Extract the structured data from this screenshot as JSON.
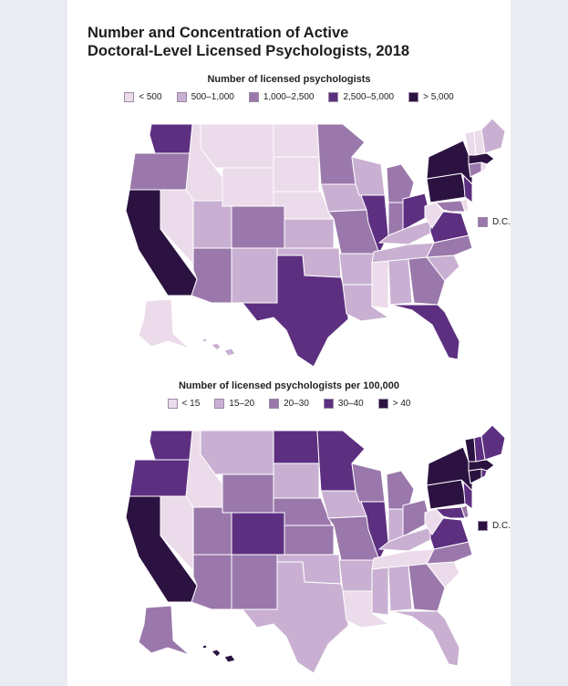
{
  "title_line1": "Number and Concentration of Active",
  "title_line2": "Doctoral-Level Licensed Psychologists, 2018",
  "colors": [
    "#ecdbea",
    "#c9b0d2",
    "#9a78ab",
    "#5d2f80",
    "#2c1241"
  ],
  "map1": {
    "subtitle": "Number of licensed psychologists",
    "legend": [
      "< 500",
      "500–1,000",
      "1,000–2,500",
      "2,500–5,000",
      "> 5,000"
    ],
    "dc_label": "D.C.",
    "dc_class": 2,
    "states": {
      "WA": 3,
      "OR": 2,
      "CA": 4,
      "NV": 0,
      "ID": 0,
      "MT": 0,
      "WY": 0,
      "UT": 1,
      "AZ": 2,
      "CO": 2,
      "NM": 1,
      "ND": 0,
      "SD": 0,
      "NE": 0,
      "KS": 1,
      "OK": 1,
      "TX": 3,
      "MN": 2,
      "IA": 1,
      "MO": 2,
      "AR": 1,
      "LA": 1,
      "WI": 1,
      "IL": 3,
      "MI": 2,
      "IN": 2,
      "OH": 3,
      "KY": 1,
      "TN": 1,
      "MS": 0,
      "AL": 1,
      "GA": 2,
      "FL": 3,
      "SC": 1,
      "NC": 2,
      "VA": 3,
      "WV": 0,
      "PA": 4,
      "NY": 4,
      "NJ": 3,
      "MD": 2,
      "DE": 0,
      "CT": 2,
      "RI": 0,
      "MA": 4,
      "VT": 0,
      "NH": 0,
      "ME": 1,
      "AK": 0,
      "HI": 1
    }
  },
  "map2": {
    "subtitle": "Number of licensed psychologists per 100,000",
    "legend": [
      "< 15",
      "15–20",
      "20–30",
      "30–40",
      "> 40"
    ],
    "dc_label": "D.C.",
    "dc_class": 4,
    "states": {
      "WA": 3,
      "OR": 3,
      "CA": 4,
      "NV": 0,
      "ID": 0,
      "MT": 1,
      "WY": 2,
      "UT": 2,
      "AZ": 2,
      "CO": 3,
      "NM": 2,
      "ND": 3,
      "SD": 1,
      "NE": 2,
      "KS": 2,
      "OK": 1,
      "TX": 1,
      "MN": 3,
      "IA": 1,
      "MO": 2,
      "AR": 1,
      "LA": 0,
      "WI": 2,
      "IL": 3,
      "MI": 2,
      "IN": 1,
      "OH": 2,
      "KY": 1,
      "TN": 0,
      "MS": 1,
      "AL": 1,
      "GA": 2,
      "FL": 1,
      "SC": 0,
      "NC": 2,
      "VA": 3,
      "WV": 0,
      "PA": 4,
      "NY": 4,
      "NJ": 3,
      "MD": 3,
      "DE": 2,
      "CT": 4,
      "RI": 3,
      "MA": 4,
      "VT": 4,
      "NH": 3,
      "ME": 3,
      "AK": 2,
      "HI": 4
    }
  }
}
